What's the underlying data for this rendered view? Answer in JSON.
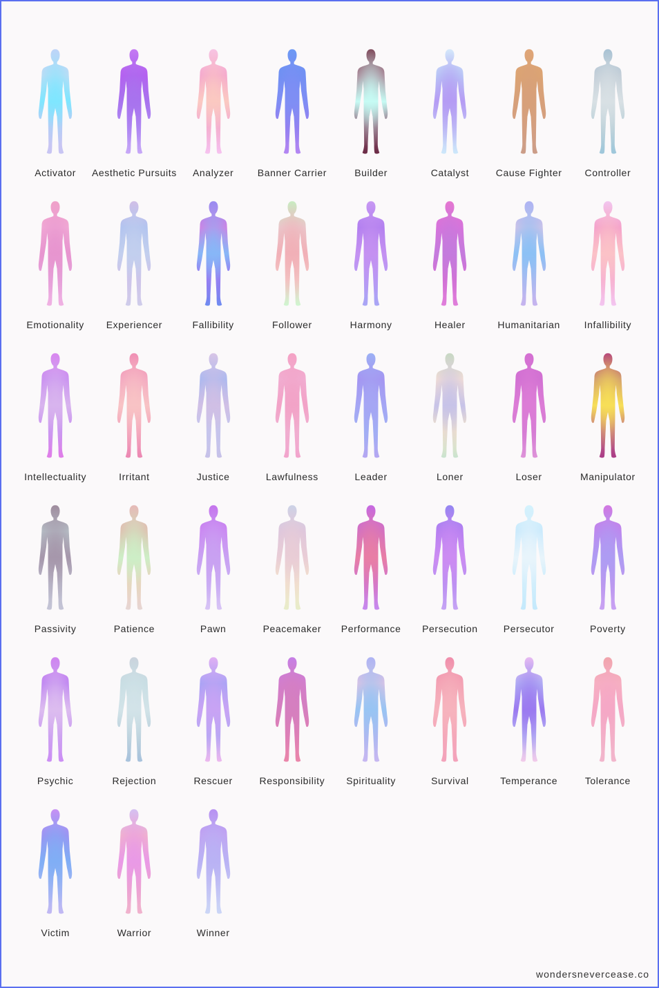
{
  "credit": "wondersnevercease.co",
  "figures": [
    {
      "label": "Activator",
      "colors": [
        "#c4d2f7",
        "#bfdcf5",
        "#7fe6ff",
        "#c9c5f3",
        "#c8c5f3"
      ]
    },
    {
      "label": "Aesthetic Pursuits",
      "colors": [
        "#c77af4",
        "#b65ef0",
        "#a873ee",
        "#b18df4",
        "#c7a8f7"
      ]
    },
    {
      "label": "Analyzer",
      "colors": [
        "#f7c3e6",
        "#f4a6cf",
        "#fbc9c1",
        "#f2a8d6",
        "#f6c3ef"
      ]
    },
    {
      "label": "Banner Carrier",
      "colors": [
        "#6b9af4",
        "#6f90f3",
        "#7f8ef4",
        "#9b7cf0",
        "#b487f2"
      ]
    },
    {
      "label": "Builder",
      "colors": [
        "#7a3b4e",
        "#a98495",
        "#c6fbf4",
        "#8d5a72",
        "#6b2a45"
      ]
    },
    {
      "label": "Catalyst",
      "colors": [
        "#d8f0fb",
        "#b9c9f6",
        "#b59cf4",
        "#c0c2f6",
        "#cde8fa"
      ]
    },
    {
      "label": "Cause Fighter",
      "colors": [
        "#e0a677",
        "#dca472",
        "#d7a07a",
        "#d39f83",
        "#cb9d88"
      ]
    },
    {
      "label": "Controller",
      "colors": [
        "#a3bfd2",
        "#c2cdd7",
        "#d8e0e4",
        "#b8cfd8",
        "#9ec7db"
      ]
    },
    {
      "label": "Emotionality",
      "colors": [
        "#f0a2c8",
        "#f1a9d5",
        "#e795cf",
        "#e6a3dc",
        "#f0b2e3"
      ]
    },
    {
      "label": "Experiencer",
      "colors": [
        "#d2bde6",
        "#b0c2ef",
        "#c2cfee",
        "#d1c1e8",
        "#cfcdea"
      ]
    },
    {
      "label": "Fallibility",
      "colors": [
        "#9a86f0",
        "#d37fe2",
        "#87b7f7",
        "#9a6cf0",
        "#6e8df0"
      ]
    },
    {
      "label": "Follower",
      "colors": [
        "#c4f2c2",
        "#e9c8cc",
        "#f1b0b7",
        "#f4c8c5",
        "#cff6d0"
      ]
    },
    {
      "label": "Harmony",
      "colors": [
        "#c89af3",
        "#b07df0",
        "#c491f1",
        "#b49bf5",
        "#a9a6f5"
      ]
    },
    {
      "label": "Healer",
      "colors": [
        "#e877cf",
        "#d972db",
        "#c47bdd",
        "#d66fd3",
        "#e07fdb"
      ]
    },
    {
      "label": "Humanitarian",
      "colors": [
        "#b1b2f3",
        "#cfc3e8",
        "#8cc1f5",
        "#b3b7ef",
        "#c6b4ee"
      ]
    },
    {
      "label": "Infallibility",
      "colors": [
        "#f1c6f3",
        "#f49fcb",
        "#fbc2c7",
        "#f6aed5",
        "#f3c6f0"
      ]
    },
    {
      "label": "Intellectuality",
      "colors": [
        "#d983ef",
        "#c98ff1",
        "#d8b4ee",
        "#c78ef1",
        "#e17ee8"
      ]
    },
    {
      "label": "Irritant",
      "colors": [
        "#ef8ab2",
        "#f3a7c1",
        "#f8c3c5",
        "#f2a1bb",
        "#ec88b3"
      ]
    },
    {
      "label": "Justice",
      "colors": [
        "#d9c6e6",
        "#a8b8f0",
        "#d0bfe5",
        "#c2c7ef",
        "#c7c1e8"
      ]
    },
    {
      "label": "Lawfulness",
      "colors": [
        "#f5a2c4",
        "#f1aed2",
        "#f2a3c7",
        "#f0b2d3",
        "#f2a4cc"
      ]
    },
    {
      "label": "Leader",
      "colors": [
        "#9bb2f4",
        "#a493f1",
        "#a5a6f4",
        "#a0b1f4",
        "#b5a6f2"
      ]
    },
    {
      "label": "Loner",
      "colors": [
        "#c7dac0",
        "#f2ddd4",
        "#c7c3e8",
        "#f5e5c7",
        "#c9e3cf"
      ]
    },
    {
      "label": "Loser",
      "colors": [
        "#d46fd2",
        "#d06fd2",
        "#dc7cd6",
        "#d47dd4",
        "#de93d9"
      ]
    },
    {
      "label": "Manipulator",
      "colors": [
        "#b13a7e",
        "#d19c6f",
        "#f7df57",
        "#c26d86",
        "#aa3b87"
      ]
    },
    {
      "label": "Passivity",
      "colors": [
        "#9e8a9c",
        "#b5bec5",
        "#a697ab",
        "#bdbccd",
        "#c4c4d6"
      ]
    },
    {
      "label": "Patience",
      "colors": [
        "#e8b5b6",
        "#dfbfb0",
        "#cdeec6",
        "#efcfbd",
        "#e6d6d4"
      ]
    },
    {
      "label": "Pawn",
      "colors": [
        "#c470ec",
        "#cb87f2",
        "#c9a1f2",
        "#cab0f4",
        "#d8c4f5"
      ]
    },
    {
      "label": "Peacemaker",
      "colors": [
        "#c9d3e8",
        "#ddc6dd",
        "#e9cdd6",
        "#f4e5cc",
        "#e7ecc9"
      ]
    },
    {
      "label": "Performance",
      "colors": [
        "#c267e8",
        "#d170c3",
        "#e87ea5",
        "#cf75d3",
        "#c68aef"
      ]
    },
    {
      "label": "Persecution",
      "colors": [
        "#8f86f1",
        "#b47ef1",
        "#cc8cf2",
        "#b892f2",
        "#c6a4f4"
      ]
    },
    {
      "label": "Persecutor",
      "colors": [
        "#d2f2fd",
        "#c7e9fc",
        "#e8f4fb",
        "#c9ecfc",
        "#c5e9fc"
      ]
    },
    {
      "label": "Poverty",
      "colors": [
        "#d574df",
        "#be86ee",
        "#ae9cf3",
        "#bf97ef",
        "#c9a2f3"
      ]
    },
    {
      "label": "Psychic",
      "colors": [
        "#cf7fef",
        "#bd83f2",
        "#dcbcef",
        "#c99af2",
        "#cc8ff4"
      ]
    },
    {
      "label": "Rejection",
      "colors": [
        "#c9d1db",
        "#c7dde3",
        "#d2e3e8",
        "#b9cfdc",
        "#a8c2dc"
      ]
    },
    {
      "label": "Rescuer",
      "colors": [
        "#e4b1f3",
        "#a7a3f5",
        "#c8a3f4",
        "#b5a9f4",
        "#edb8ee"
      ]
    },
    {
      "label": "Responsibility",
      "colors": [
        "#c47fea",
        "#d27ecd",
        "#d57fbf",
        "#e17fb3",
        "#ea86aa"
      ]
    },
    {
      "label": "Spirituality",
      "colors": [
        "#b0b2f4",
        "#dac3e4",
        "#98c4f3",
        "#b5b5f0",
        "#c7b8f1"
      ]
    },
    {
      "label": "Survival",
      "colors": [
        "#ef8aa9",
        "#f3a0b3",
        "#f6b3bd",
        "#f4a5b9",
        "#f3a3bb"
      ]
    },
    {
      "label": "Temperance",
      "colors": [
        "#efc0f1",
        "#b2b1f4",
        "#9b7af0",
        "#b7b5f4",
        "#f3cbea"
      ]
    },
    {
      "label": "Tolerance",
      "colors": [
        "#f0a4a9",
        "#f6b0c1",
        "#f5a8c6",
        "#f2b2c8",
        "#f2b6cc"
      ]
    },
    {
      "label": "Victim",
      "colors": [
        "#cf8ef4",
        "#9d92f2",
        "#80aef5",
        "#a7b6f4",
        "#c2b8f3"
      ]
    },
    {
      "label": "Warrior",
      "colors": [
        "#d2c4f3",
        "#f0b2cd",
        "#e99ae6",
        "#eda4cd",
        "#f0b3cd"
      ]
    },
    {
      "label": "Winner",
      "colors": [
        "#b78ef2",
        "#c1a3f2",
        "#b9b2f4",
        "#c6c8f5",
        "#cbd6f6"
      ]
    }
  ]
}
